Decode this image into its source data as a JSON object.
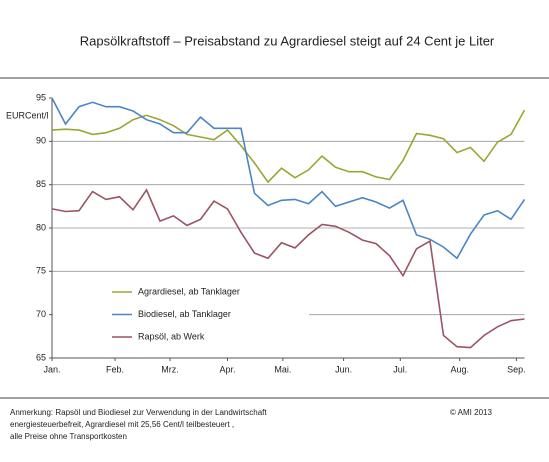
{
  "chart_data": {
    "type": "line",
    "title": "Rapsölkraftstoff – Preisabstand zu Agrardiesel steigt auf 24 Cent je Liter",
    "y_label": "EURCent/l",
    "x": [
      0,
      1,
      2,
      3,
      4,
      5,
      6,
      7,
      8,
      9,
      10,
      11,
      12,
      13,
      14,
      15,
      16,
      17,
      18,
      19,
      20,
      21,
      22,
      23,
      24,
      25,
      26,
      27,
      28,
      29,
      30,
      31,
      32,
      33,
      34,
      35
    ],
    "xlim": [
      0,
      35
    ],
    "xticks": [
      {
        "value": 0,
        "label": "Jan."
      },
      {
        "value": 4.67,
        "label": "Feb."
      },
      {
        "value": 8.74,
        "label": "Mrz."
      },
      {
        "value": 13,
        "label": "Apr."
      },
      {
        "value": 17.1,
        "label": "Mai."
      },
      {
        "value": 21.6,
        "label": "Jun."
      },
      {
        "value": 25.8,
        "label": "Jul."
      },
      {
        "value": 30.2,
        "label": "Aug."
      },
      {
        "value": 34.4,
        "label": "Sep."
      }
    ],
    "ylim": [
      65,
      95
    ],
    "yticks": [
      65,
      70,
      75,
      80,
      85,
      90,
      95
    ],
    "grid": true,
    "legend": "lower left",
    "series": [
      {
        "name": "Agrardiesel, ab Tanklager",
        "color": "#9ca534",
        "values": [
          91.3,
          91.4,
          91.3,
          90.8,
          91,
          91.5,
          92.5,
          93,
          92.5,
          91.8,
          90.8,
          90.5,
          90.2,
          91.3,
          89.5,
          87.5,
          85.3,
          86.9,
          85.8,
          86.7,
          88.3,
          87,
          86.5,
          86.5,
          85.9,
          85.6,
          87.8,
          90.9,
          90.7,
          90.3,
          88.7,
          89.3,
          87.7,
          89.9,
          90.8,
          93.6
        ]
      },
      {
        "name": "Biodiesel, ab Tanklager",
        "color": "#4a86c5",
        "values": [
          95,
          92,
          94,
          94.5,
          94,
          94,
          93.5,
          92.5,
          92,
          91,
          91,
          92.8,
          91.5,
          91.5,
          91.5,
          84,
          82.6,
          83.2,
          83.3,
          82.8,
          84.2,
          82.5,
          83,
          83.5,
          83,
          82.3,
          83.2,
          79.2,
          78.7,
          77.8,
          76.5,
          79.3,
          81.5,
          82,
          81,
          83.3
        ]
      },
      {
        "name": "Rapsöl, ab Werk",
        "color": "#9b5462",
        "values": [
          82.2,
          81.9,
          82,
          84.2,
          83.3,
          83.6,
          82.1,
          84.4,
          80.8,
          81.4,
          80.3,
          81,
          83.1,
          82.2,
          79.5,
          77.1,
          76.5,
          78.3,
          77.7,
          79.2,
          80.4,
          80.2,
          79.5,
          78.6,
          78.2,
          76.8,
          74.5,
          77.6,
          78.5,
          67.6,
          66.3,
          66.2,
          67.6,
          68.6,
          69.3,
          69.5
        ]
      }
    ]
  },
  "footer": {
    "note": [
      "Anmerkung: Rapsöl und Biodiesel zur Verwendung in der Landwirtschaft",
      "energiesteuerbefreit, Agrardiesel mit 25,56 Cent/l teilbesteuert ,",
      "alle Preise ohne Transportkosten"
    ],
    "copyright": "© AMI 2013"
  }
}
